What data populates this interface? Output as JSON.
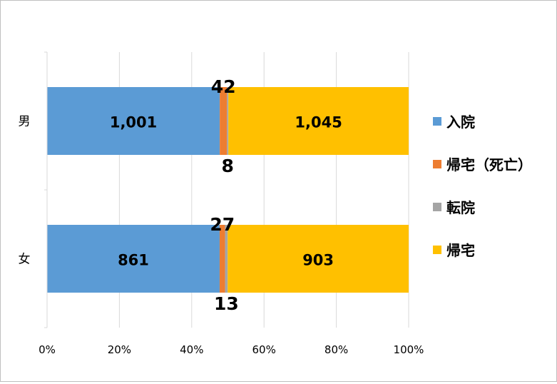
{
  "chart_data": {
    "type": "bar",
    "stacked": "percent",
    "orientation": "horizontal",
    "categories": [
      "男",
      "女"
    ],
    "series": [
      {
        "name": "入院",
        "color": "#5b9bd5",
        "values": [
          1001,
          861
        ],
        "labels": [
          "1,001",
          "861"
        ]
      },
      {
        "name": "帰宅（死亡）",
        "color": "#ed7d31",
        "values": [
          42,
          27
        ],
        "labels": [
          "42",
          "27"
        ]
      },
      {
        "name": "転院",
        "color": "#a5a5a5",
        "values": [
          8,
          13
        ],
        "labels": [
          "8",
          "13"
        ]
      },
      {
        "name": "帰宅",
        "color": "#ffc000",
        "values": [
          1045,
          903
        ],
        "labels": [
          "1,045",
          "903"
        ]
      }
    ],
    "xlim": [
      0,
      100
    ],
    "xticks": [
      "0%",
      "20%",
      "40%",
      "60%",
      "80%",
      "100%"
    ],
    "grid": true,
    "legend_position": "right"
  }
}
